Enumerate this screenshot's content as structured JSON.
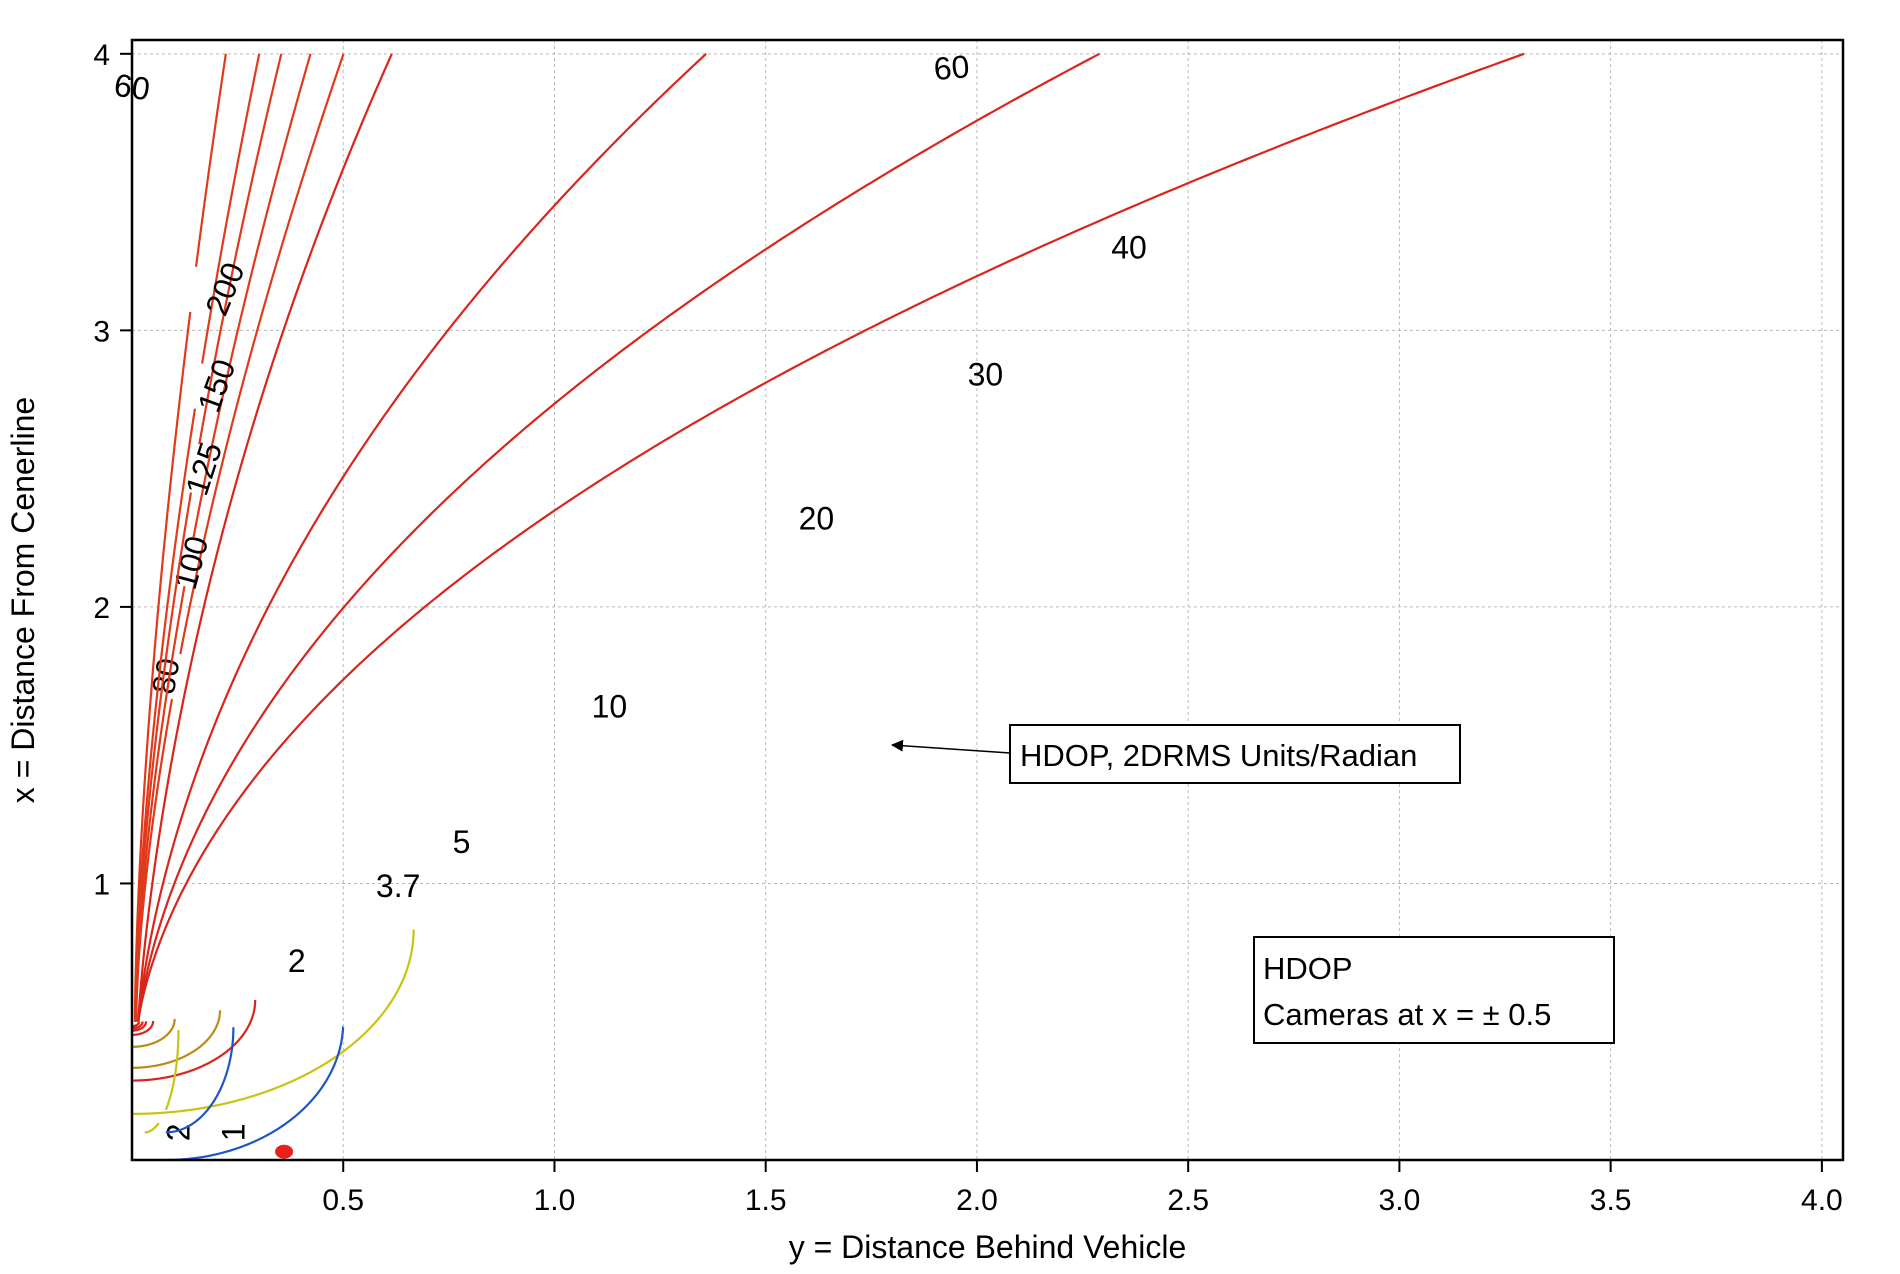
{
  "chart_data": {
    "type": "contour",
    "title": "",
    "xlabel": "y = Distance Behind Vehicle",
    "ylabel": "x = Distance From Cenerline",
    "xlim": [
      0,
      4.05
    ],
    "ylim": [
      0,
      4.05
    ],
    "x_ticks": [
      "0.5",
      "1.0",
      "1.5",
      "2.0",
      "2.5",
      "3.0",
      "3.5",
      "4.0"
    ],
    "y_ticks": [
      "1",
      "2",
      "3",
      "4"
    ],
    "grid": true,
    "camera_positions_x": [
      0.5,
      -0.5
    ],
    "contour_levels": [
      {
        "level": 60,
        "label": "60",
        "color": "#d9251c"
      },
      {
        "level": 40,
        "label": "40",
        "color": "#d9251c"
      },
      {
        "level": 30,
        "label": "30",
        "color": "#d9251c"
      },
      {
        "level": 20,
        "label": "20",
        "color": "#d9251c"
      },
      {
        "level": 10,
        "label": "10",
        "color": "#bd8a14"
      },
      {
        "level": 5,
        "label": "5",
        "color": "#bd8a14"
      },
      {
        "level": 3.7,
        "label": "3.7",
        "color": "#d9251c"
      },
      {
        "level": 2,
        "label": "2",
        "color": "#c8c414"
      },
      {
        "level": 1,
        "label": "1",
        "color": "#1f55c8"
      },
      {
        "level": 80,
        "label": "80",
        "color": "#e13a1a"
      },
      {
        "level": 100,
        "label": "100",
        "color": "#e13a1a"
      },
      {
        "level": 125,
        "label": "125",
        "color": "#e13a1a"
      },
      {
        "level": 150,
        "label": "150",
        "color": "#e13a1a"
      },
      {
        "level": 200,
        "label": "200",
        "color": "#e13a1a"
      }
    ],
    "annotations": {
      "arrow_box": "HDOP, 2DRMS Units/Radian",
      "legend_line1": "HDOP",
      "legend_line2": "Cameras at x = ± 0.5"
    }
  }
}
